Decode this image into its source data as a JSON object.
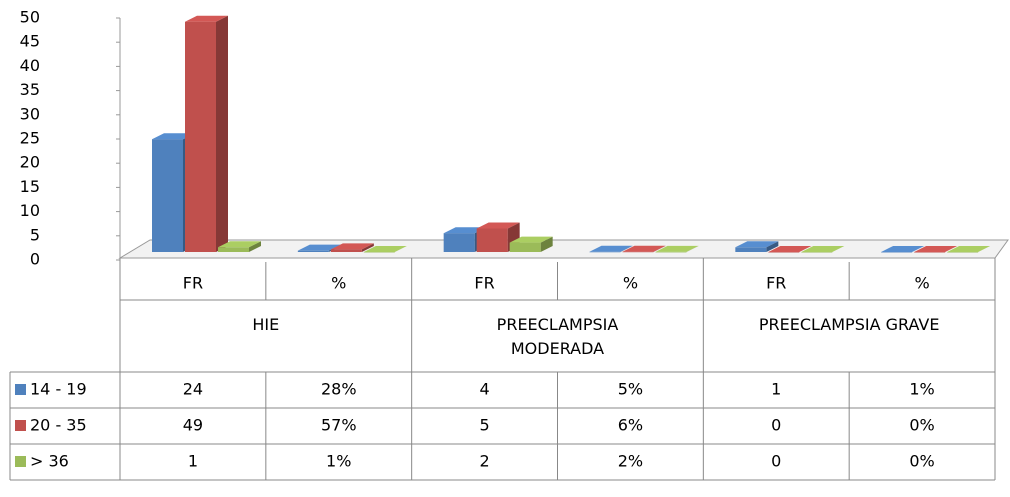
{
  "chart_data": {
    "type": "bar",
    "categories": [
      "FR",
      "%",
      "FR",
      "%",
      "FR",
      "%"
    ],
    "groups": [
      "HIE",
      "PREECLAMPSIA MODERADA",
      "PREECLAMPSIA GRAVE"
    ],
    "series": [
      {
        "name": "14 - 19",
        "color": "#4f81bd",
        "values": [
          24,
          0.28,
          4,
          0.05,
          1,
          0.01
        ],
        "value_labels": [
          "24",
          "28%",
          "4",
          "5%",
          "1",
          "1%"
        ]
      },
      {
        "name": "20 - 35",
        "color": "#c0504d",
        "values": [
          49,
          0.57,
          5,
          0.06,
          0,
          0
        ],
        "value_labels": [
          "49",
          "57%",
          "5",
          "6%",
          "0",
          "0%"
        ]
      },
      {
        "name": "> 36",
        "color": "#9bbb59",
        "values": [
          1,
          0.01,
          2,
          0.02,
          0,
          0
        ],
        "value_labels": [
          "1",
          "1%",
          "2",
          "2%",
          "0",
          "0%"
        ]
      }
    ],
    "ylim": [
      0,
      50
    ],
    "yticks": [
      0,
      5,
      10,
      15,
      20,
      25,
      30,
      35,
      40,
      45,
      50
    ]
  }
}
